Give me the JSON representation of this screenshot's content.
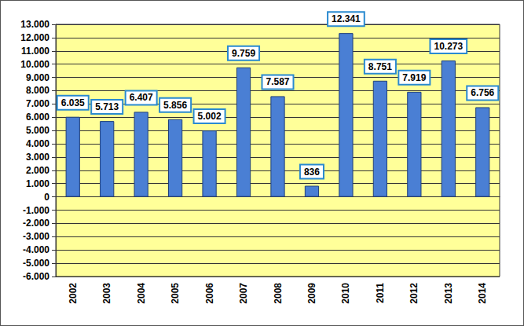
{
  "chart_data": {
    "type": "bar",
    "categories": [
      "2002",
      "2003",
      "2004",
      "2005",
      "2006",
      "2007",
      "2008",
      "2009",
      "2010",
      "2011",
      "2012",
      "2013",
      "2014"
    ],
    "values": [
      6035,
      5713,
      6407,
      5856,
      5002,
      9759,
      7587,
      836,
      12341,
      8751,
      7919,
      10273,
      6756
    ],
    "value_labels": [
      "6.035",
      "5.713",
      "6.407",
      "5.856",
      "5.002",
      "9.759",
      "7.587",
      "836",
      "12.341",
      "8.751",
      "7.919",
      "10.273",
      "6.756"
    ],
    "color": "#4a7fd4",
    "ylim": [
      -6000,
      13000
    ],
    "yticks": [
      {
        "value": -6000,
        "label": "-6.000"
      },
      {
        "value": -5000,
        "label": "-5.000"
      },
      {
        "value": -4000,
        "label": "-4.000"
      },
      {
        "value": -3000,
        "label": "-3.000"
      },
      {
        "value": -2000,
        "label": "-2.000"
      },
      {
        "value": -1000,
        "label": "-1.000"
      },
      0,
      {
        "value": 1000,
        "label": "1.000"
      },
      {
        "value": 2000,
        "label": "2.000"
      },
      {
        "value": 3000,
        "label": "3.000"
      },
      {
        "value": 4000,
        "label": "4.000"
      },
      {
        "value": 5000,
        "label": "5.000"
      },
      {
        "value": 6000,
        "label": "6.000"
      },
      {
        "value": 7000,
        "label": "7.000"
      },
      {
        "value": 8000,
        "label": "8.000"
      },
      {
        "value": 9000,
        "label": "9.000"
      },
      {
        "value": 10000,
        "label": "10.000"
      },
      {
        "value": 11000,
        "label": "11.000"
      },
      {
        "value": 12000,
        "label": "12.000"
      },
      {
        "value": 13000,
        "label": "13.000"
      }
    ],
    "grid": true,
    "data_labels": true
  }
}
